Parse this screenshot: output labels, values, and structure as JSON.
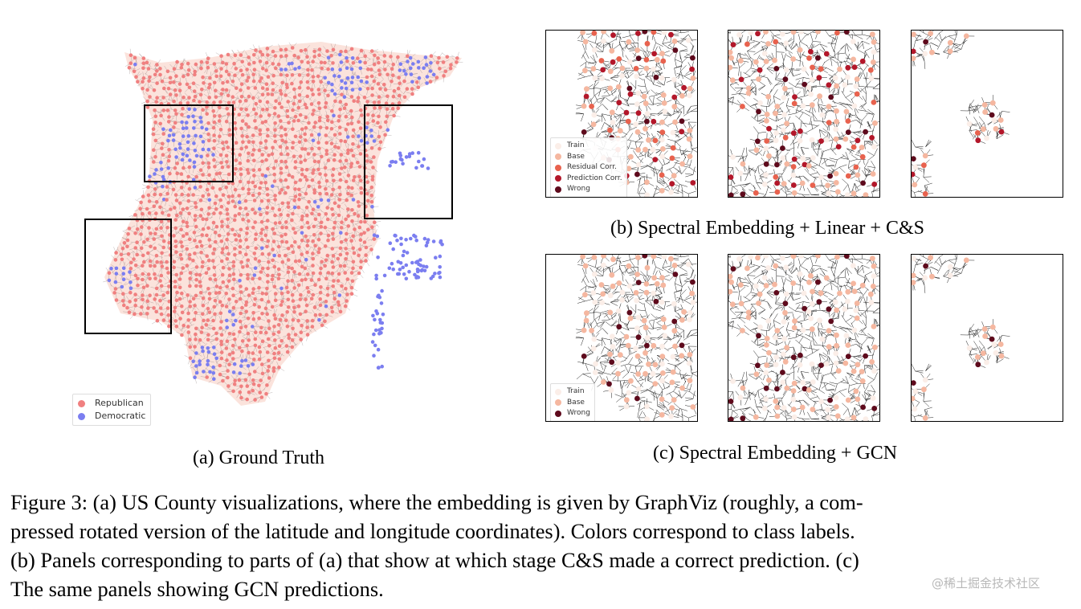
{
  "panel_a": {
    "caption": "(a) Ground Truth",
    "legend": [
      {
        "label": "Republican",
        "color": "#f08080"
      },
      {
        "label": "Democratic",
        "color": "#7b7ef0"
      }
    ]
  },
  "panel_b": {
    "caption": "(b) Spectral Embedding + Linear + C&S",
    "legend": [
      {
        "label": "Train",
        "color": "#fbeee8"
      },
      {
        "label": "Base",
        "color": "#f5b7a0"
      },
      {
        "label": "Residual Corr.",
        "color": "#e8624e"
      },
      {
        "label": "Prediction Corr.",
        "color": "#b3172a"
      },
      {
        "label": "Wrong",
        "color": "#5e0a1c"
      }
    ]
  },
  "panel_c": {
    "caption": "(c) Spectral Embedding + GCN",
    "legend": [
      {
        "label": "Train",
        "color": "#fbeee8"
      },
      {
        "label": "Base",
        "color": "#f5b7a0"
      },
      {
        "label": "Wrong",
        "color": "#5e0a1c"
      }
    ]
  },
  "figure_caption": {
    "lines": [
      "Figure 3: (a) US County visualizations, where the embedding is given by GraphViz (roughly, a com-",
      "pressed rotated version of the latitude and longitude coordinates). Colors correspond to class labels.",
      "(b) Panels corresponding to parts of (a) that show at which stage C&S made a correct prediction. (c)",
      "The same panels showing GCN predictions."
    ]
  },
  "watermark": "@稀土掘金技术社区"
}
